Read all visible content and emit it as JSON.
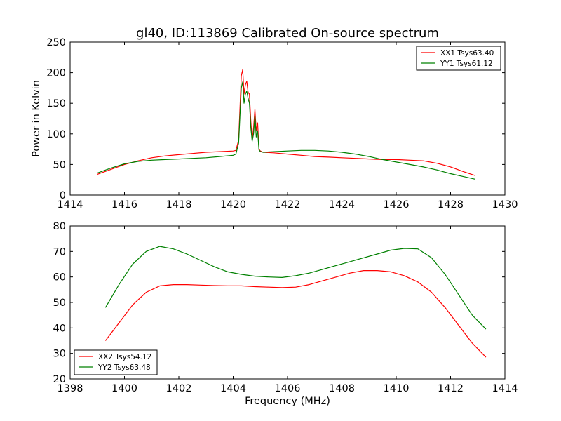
{
  "colors": {
    "xx": "#ff0000",
    "yy": "#008000"
  },
  "chart_data": [
    {
      "type": "line",
      "title": "gl40, ID:113869 Calibrated On-source spectrum",
      "xlabel": "",
      "ylabel": "Power in Kelvin",
      "xlim": [
        1414,
        1430
      ],
      "ylim": [
        0,
        250
      ],
      "xticks": [
        "1414",
        "1416",
        "1418",
        "1420",
        "1422",
        "1424",
        "1426",
        "1428",
        "1430"
      ],
      "yticks": [
        "0",
        "50",
        "100",
        "150",
        "200",
        "250"
      ],
      "legend_position": "top-right",
      "grid": false,
      "series": [
        {
          "name": "XX1 Tsys63.40",
          "color": "#ff0000",
          "x": [
            1415.0,
            1415.5,
            1416.0,
            1416.5,
            1417.0,
            1417.5,
            1418.0,
            1418.5,
            1419.0,
            1419.5,
            1420.0,
            1420.1,
            1420.2,
            1420.3,
            1420.35,
            1420.4,
            1420.45,
            1420.5,
            1420.55,
            1420.6,
            1420.65,
            1420.7,
            1420.75,
            1420.8,
            1420.85,
            1420.9,
            1420.95,
            1421.0,
            1421.1,
            1421.5,
            1422.0,
            1422.5,
            1423.0,
            1423.5,
            1424.0,
            1424.5,
            1425.0,
            1425.5,
            1426.0,
            1426.5,
            1427.0,
            1427.5,
            1428.0,
            1428.5,
            1428.9
          ],
          "y": [
            34,
            42,
            50,
            56,
            61,
            64,
            66,
            68,
            70,
            71,
            72,
            73,
            90,
            195,
            205,
            165,
            180,
            186,
            168,
            165,
            120,
            90,
            110,
            140,
            105,
            118,
            75,
            72,
            70,
            69,
            67,
            65,
            63,
            62,
            61,
            60,
            59,
            58,
            58,
            57,
            56,
            52,
            46,
            38,
            32
          ]
        },
        {
          "name": "YY1 Tsys61.12",
          "color": "#008000",
          "x": [
            1415.0,
            1415.5,
            1416.0,
            1416.5,
            1417.0,
            1417.5,
            1418.0,
            1418.5,
            1419.0,
            1419.5,
            1420.0,
            1420.1,
            1420.2,
            1420.3,
            1420.35,
            1420.4,
            1420.45,
            1420.5,
            1420.55,
            1420.6,
            1420.65,
            1420.7,
            1420.75,
            1420.8,
            1420.85,
            1420.9,
            1420.95,
            1421.0,
            1421.1,
            1421.5,
            1422.0,
            1422.5,
            1423.0,
            1423.5,
            1424.0,
            1424.5,
            1425.0,
            1425.5,
            1426.0,
            1426.5,
            1427.0,
            1427.5,
            1428.0,
            1428.5,
            1428.9
          ],
          "y": [
            36,
            44,
            51,
            55,
            57,
            58,
            59,
            60,
            61,
            63,
            65,
            67,
            85,
            175,
            185,
            150,
            165,
            170,
            158,
            150,
            110,
            88,
            100,
            130,
            95,
            105,
            74,
            71,
            70,
            71,
            72,
            73,
            73,
            72,
            70,
            67,
            63,
            58,
            54,
            50,
            46,
            41,
            35,
            30,
            26
          ]
        }
      ]
    },
    {
      "type": "line",
      "title": "",
      "xlabel": "Frequency (MHz)",
      "ylabel": "",
      "xlim": [
        1398,
        1414
      ],
      "ylim": [
        20,
        80
      ],
      "xticks": [
        "1398",
        "1400",
        "1402",
        "1404",
        "1406",
        "1408",
        "1410",
        "1412",
        "1414"
      ],
      "yticks": [
        "20",
        "30",
        "40",
        "50",
        "60",
        "70",
        "80"
      ],
      "legend_position": "bottom-left",
      "grid": false,
      "series": [
        {
          "name": "XX2 Tsys54.12",
          "color": "#ff0000",
          "x": [
            1399.3,
            1399.8,
            1400.3,
            1400.8,
            1401.3,
            1401.8,
            1402.3,
            1402.8,
            1403.3,
            1403.8,
            1404.3,
            1404.8,
            1405.3,
            1405.8,
            1406.3,
            1406.8,
            1407.3,
            1407.8,
            1408.3,
            1408.8,
            1409.3,
            1409.8,
            1410.3,
            1410.8,
            1411.3,
            1411.8,
            1412.3,
            1412.8,
            1413.3
          ],
          "y": [
            35,
            42,
            49,
            54,
            56.5,
            57,
            57,
            56.8,
            56.6,
            56.5,
            56.5,
            56.2,
            56,
            55.8,
            56,
            57,
            58.5,
            60,
            61.5,
            62.5,
            62.5,
            62,
            60.5,
            58,
            54,
            48,
            41,
            34,
            28.5
          ]
        },
        {
          "name": "YY2 Tsys63.48",
          "color": "#008000",
          "x": [
            1399.3,
            1399.8,
            1400.3,
            1400.8,
            1401.3,
            1401.8,
            1402.3,
            1402.8,
            1403.3,
            1403.8,
            1404.3,
            1404.8,
            1405.3,
            1405.8,
            1406.3,
            1406.8,
            1407.3,
            1407.8,
            1408.3,
            1408.8,
            1409.3,
            1409.8,
            1410.3,
            1410.8,
            1411.3,
            1411.8,
            1412.3,
            1412.8,
            1413.3
          ],
          "y": [
            48,
            57,
            65,
            70,
            72,
            71,
            69,
            66.5,
            64,
            62,
            61,
            60.3,
            60,
            59.8,
            60.5,
            61.5,
            63,
            64.5,
            66,
            67.5,
            69,
            70.5,
            71.2,
            71,
            67.5,
            61,
            53,
            45,
            39.5
          ]
        }
      ]
    }
  ]
}
